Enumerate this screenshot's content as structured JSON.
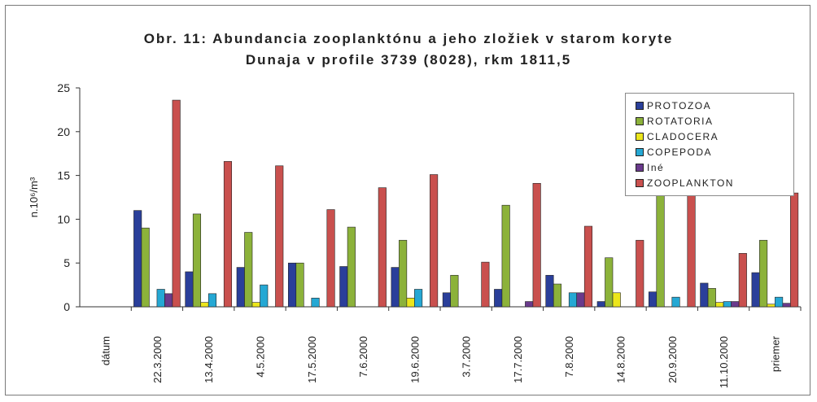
{
  "chart_data": {
    "type": "bar",
    "title_line1": "Obr. 11:  Abundancia zooplanktónu a jeho zložiek v starom koryte",
    "title_line2": "Dunaja v profile 3739 (8028), rkm 1811,5",
    "ylabel": "n.10⁶/m³",
    "xlabel": "",
    "ylim": [
      0,
      25
    ],
    "yticks": [
      "0",
      "5",
      "10",
      "15",
      "20",
      "25"
    ],
    "grid": false,
    "legend_position": "top-right",
    "categories": [
      "dátum",
      "22.3.2000",
      "13.4.2000",
      "4.5.2000",
      "17.5.2000",
      "7.6.2000",
      "19.6.2000",
      "3.7.2000",
      "17.7.2000",
      "7.8.2000",
      "14.8.2000",
      "20.9.2000",
      "11.10.2000",
      "priemer"
    ],
    "series": [
      {
        "name": "PROTOZOA",
        "color": "#2a3f9a",
        "values": [
          0,
          11.0,
          4.0,
          4.5,
          5.0,
          4.6,
          4.5,
          1.6,
          2.0,
          3.6,
          0.6,
          1.7,
          2.7,
          3.9
        ]
      },
      {
        "name": "ROTATORIA",
        "color": "#8cb23a",
        "values": [
          0,
          9.0,
          10.6,
          8.5,
          5.0,
          9.1,
          7.6,
          3.6,
          11.6,
          2.6,
          5.6,
          14.0,
          2.1,
          7.6
        ]
      },
      {
        "name": "CLADOCERA",
        "color": "#ece61c",
        "values": [
          0,
          0,
          0.5,
          0.5,
          0,
          0,
          1.0,
          0,
          0,
          0,
          1.6,
          0,
          0.5,
          0.3
        ]
      },
      {
        "name": "COPEPODA",
        "color": "#25a8d4",
        "values": [
          0,
          2.0,
          1.5,
          2.5,
          1.0,
          0,
          2.0,
          0,
          0,
          1.6,
          0,
          1.1,
          0.6,
          1.1
        ]
      },
      {
        "name": "Iné",
        "color": "#6a3a8c",
        "values": [
          0,
          1.5,
          0,
          0,
          0,
          0,
          0,
          0,
          0.6,
          1.6,
          0,
          0,
          0.6,
          0.4
        ]
      },
      {
        "name": "ZOOPLANKTON",
        "color": "#c9504e",
        "values": [
          0,
          23.6,
          16.6,
          16.1,
          11.1,
          13.6,
          15.1,
          5.1,
          14.1,
          9.2,
          7.6,
          13.2,
          6.1,
          13.0
        ]
      }
    ]
  }
}
